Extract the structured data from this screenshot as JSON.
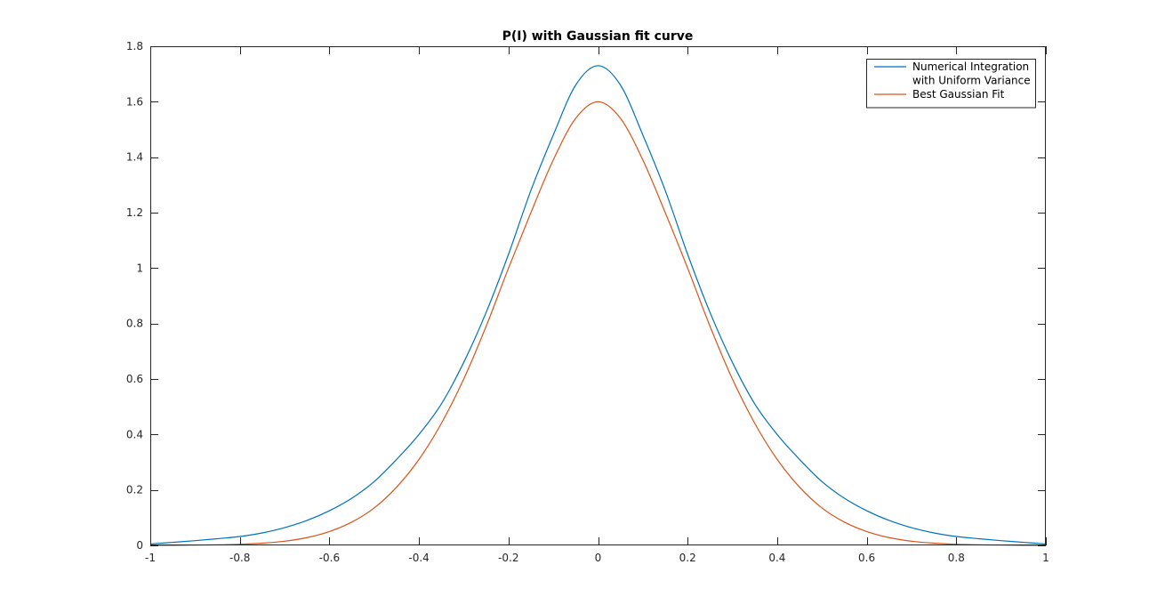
{
  "chart_data": {
    "type": "line",
    "title": "P(I) with Gaussian fit curve",
    "xlabel": "",
    "ylabel": "",
    "xlim": [
      -1,
      1
    ],
    "ylim": [
      0,
      1.8
    ],
    "xticks": [
      -1,
      -0.8,
      -0.6,
      -0.4,
      -0.2,
      0,
      0.2,
      0.4,
      0.6,
      0.8,
      1
    ],
    "xtick_labels": [
      "-1",
      "-0.8",
      "-0.6",
      "-0.4",
      "-0.2",
      "0",
      "0.2",
      "0.4",
      "0.6",
      "0.8",
      "1"
    ],
    "yticks": [
      0,
      0.2,
      0.4,
      0.6,
      0.8,
      1,
      1.2,
      1.4,
      1.6,
      1.8
    ],
    "ytick_labels": [
      "0",
      "0.2",
      "0.4",
      "0.6",
      "0.8",
      "1",
      "1.2",
      "1.4",
      "1.6",
      "1.8"
    ],
    "grid": false,
    "legend_position": "top-right",
    "series": [
      {
        "name_lines": [
          "Numerical Integration",
          "with Uniform Variance"
        ],
        "color": "#0072BD",
        "x": [
          -1,
          -0.95,
          -0.9,
          -0.85,
          -0.8,
          -0.75,
          -0.7,
          -0.65,
          -0.6,
          -0.55,
          -0.5,
          -0.45,
          -0.4,
          -0.35,
          -0.3,
          -0.25,
          -0.2,
          -0.15,
          -0.1,
          -0.05,
          0,
          0.05,
          0.1,
          0.15,
          0.2,
          0.25,
          0.3,
          0.35,
          0.4,
          0.45,
          0.5,
          0.55,
          0.6,
          0.65,
          0.7,
          0.75,
          0.8,
          0.85,
          0.9,
          0.95,
          1
        ],
        "y": [
          0.005,
          0.011,
          0.017,
          0.024,
          0.032,
          0.045,
          0.064,
          0.09,
          0.125,
          0.17,
          0.23,
          0.31,
          0.4,
          0.51,
          0.66,
          0.84,
          1.05,
          1.28,
          1.48,
          1.66,
          1.73,
          1.66,
          1.48,
          1.28,
          1.05,
          0.84,
          0.66,
          0.51,
          0.4,
          0.31,
          0.23,
          0.17,
          0.125,
          0.09,
          0.064,
          0.045,
          0.032,
          0.024,
          0.017,
          0.011,
          0.005
        ]
      },
      {
        "name_lines": [
          "Best Gaussian Fit"
        ],
        "color": "#D95319",
        "x": [
          -1,
          -0.95,
          -0.9,
          -0.85,
          -0.8,
          -0.75,
          -0.7,
          -0.65,
          -0.6,
          -0.55,
          -0.5,
          -0.45,
          -0.4,
          -0.35,
          -0.3,
          -0.25,
          -0.2,
          -0.15,
          -0.1,
          -0.05,
          0,
          0.05,
          0.1,
          0.15,
          0.2,
          0.25,
          0.3,
          0.35,
          0.4,
          0.45,
          0.5,
          0.55,
          0.6,
          0.65,
          0.7,
          0.75,
          0.8,
          0.85,
          0.9,
          0.95,
          1
        ],
        "y": [
          0.0,
          0.0,
          0.001,
          0.002,
          0.004,
          0.008,
          0.015,
          0.028,
          0.05,
          0.084,
          0.135,
          0.21,
          0.31,
          0.44,
          0.6,
          0.79,
          1.0,
          1.2,
          1.39,
          1.54,
          1.6,
          1.54,
          1.39,
          1.2,
          1.0,
          0.79,
          0.6,
          0.44,
          0.31,
          0.21,
          0.135,
          0.084,
          0.05,
          0.028,
          0.015,
          0.008,
          0.004,
          0.002,
          0.001,
          0.0,
          0.0
        ]
      }
    ]
  }
}
